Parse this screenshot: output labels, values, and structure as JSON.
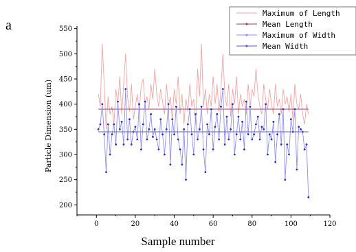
{
  "panel_label": "a",
  "chart_data": {
    "type": "line",
    "xlabel": "Sample number",
    "ylabel": "Particle Dimension (um)",
    "xlim": [
      -10,
      120
    ],
    "ylim": [
      180,
      555
    ],
    "xticks": [
      0,
      20,
      40,
      60,
      80,
      100,
      120
    ],
    "yticks": [
      200,
      250,
      300,
      350,
      400,
      450,
      500,
      550
    ],
    "legend_position": "top-right",
    "series": [
      {
        "name": "Maximum of  Length",
        "color": "#f4a3a3",
        "marker": "none",
        "x": [
          1,
          2,
          3,
          4,
          5,
          6,
          7,
          8,
          9,
          10,
          11,
          12,
          13,
          14,
          15,
          16,
          17,
          18,
          19,
          20,
          21,
          22,
          23,
          24,
          25,
          26,
          27,
          28,
          29,
          30,
          31,
          32,
          33,
          34,
          35,
          36,
          37,
          38,
          39,
          40,
          41,
          42,
          43,
          44,
          45,
          46,
          47,
          48,
          49,
          50,
          51,
          52,
          53,
          54,
          55,
          56,
          57,
          58,
          59,
          60,
          61,
          62,
          63,
          64,
          65,
          66,
          67,
          68,
          69,
          70,
          71,
          72,
          73,
          74,
          75,
          76,
          77,
          78,
          79,
          80,
          81,
          82,
          83,
          84,
          85,
          86,
          87,
          88,
          89,
          90,
          91,
          92,
          93,
          94,
          95,
          96,
          97,
          98,
          99,
          100,
          101,
          102,
          103,
          104,
          105,
          106,
          107,
          108,
          109
        ],
        "values": [
          420,
          395,
          520,
          440,
          350,
          415,
          380,
          395,
          360,
          430,
          400,
          455,
          380,
          440,
          500,
          415,
          385,
          440,
          370,
          395,
          420,
          385,
          435,
          450,
          400,
          415,
          390,
          440,
          410,
          470,
          420,
          395,
          430,
          405,
          380,
          440,
          395,
          415,
          370,
          430,
          400,
          455,
          380,
          420,
          360,
          410,
          385,
          440,
          395,
          410,
          360,
          470,
          415,
          520,
          395,
          430,
          380,
          420,
          395,
          455,
          400,
          440,
          385,
          430,
          500,
          420,
          395,
          440,
          375,
          430,
          400,
          455,
          380,
          420,
          395,
          410,
          380,
          440,
          395,
          430,
          415,
          470,
          420,
          395,
          380,
          440,
          410,
          390,
          430,
          400,
          380,
          440,
          395,
          410,
          380,
          430,
          400,
          415,
          385,
          420,
          370,
          440,
          400,
          390,
          420,
          380,
          360,
          400,
          380
        ],
        "mean": 390
      },
      {
        "name": "Mean Length",
        "color": "#9a3b6a",
        "marker": "dot",
        "values": [],
        "mean": 390
      },
      {
        "name": "Maximum of  Width",
        "color": "#8f8ff2",
        "marker": "dot",
        "x": [
          1,
          2,
          3,
          4,
          5,
          6,
          7,
          8,
          9,
          10,
          11,
          12,
          13,
          14,
          15,
          16,
          17,
          18,
          19,
          20,
          21,
          22,
          23,
          24,
          25,
          26,
          27,
          28,
          29,
          30,
          31,
          32,
          33,
          34,
          35,
          36,
          37,
          38,
          39,
          40,
          41,
          42,
          43,
          44,
          45,
          46,
          47,
          48,
          49,
          50,
          51,
          52,
          53,
          54,
          55,
          56,
          57,
          58,
          59,
          60,
          61,
          62,
          63,
          64,
          65,
          66,
          67,
          68,
          69,
          70,
          71,
          72,
          73,
          74,
          75,
          76,
          77,
          78,
          79,
          80,
          81,
          82,
          83,
          84,
          85,
          86,
          87,
          88,
          89,
          90,
          91,
          92,
          93,
          94,
          95,
          96,
          97,
          98,
          99,
          100,
          101,
          102,
          103,
          104,
          105,
          106,
          107,
          108,
          109
        ],
        "values": [
          350,
          360,
          400,
          340,
          265,
          360,
          300,
          340,
          360,
          320,
          405,
          350,
          365,
          320,
          430,
          330,
          370,
          320,
          345,
          355,
          330,
          400,
          310,
          360,
          405,
          330,
          350,
          380,
          335,
          350,
          330,
          310,
          370,
          340,
          300,
          350,
          400,
          280,
          370,
          340,
          395,
          330,
          310,
          280,
          350,
          250,
          360,
          390,
          340,
          300,
          380,
          330,
          350,
          395,
          310,
          265,
          360,
          340,
          390,
          310,
          355,
          380,
          330,
          395,
          430,
          320,
          375,
          330,
          350,
          400,
          300,
          340,
          375,
          330,
          365,
          310,
          405,
          340,
          395,
          330,
          340,
          360,
          375,
          330,
          355,
          350,
          400,
          300,
          340,
          330,
          365,
          285,
          340,
          380,
          320,
          390,
          250,
          320,
          300,
          370,
          345,
          390,
          270,
          355,
          350,
          345,
          310,
          320,
          215
        ],
        "mean": 345
      },
      {
        "name": "Mean Width",
        "color": "#5b5bd6",
        "marker": "dot",
        "values": [],
        "mean": 345
      }
    ]
  }
}
